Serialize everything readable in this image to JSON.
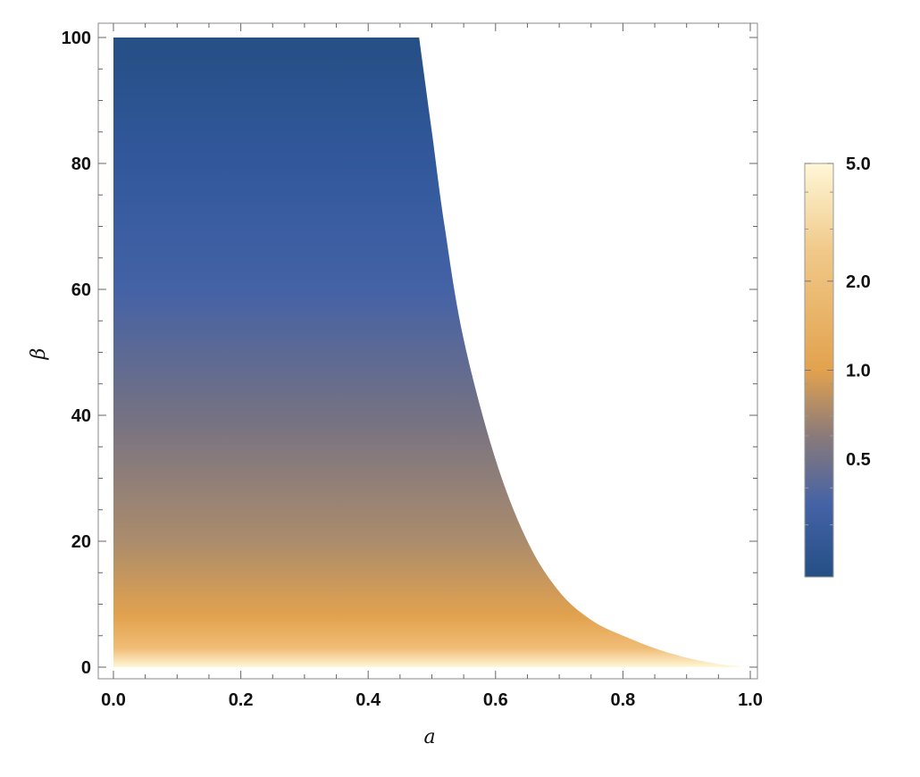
{
  "chart_data": {
    "type": "heatmap",
    "title": "",
    "xlabel": "a",
    "ylabel": "β",
    "xlim": [
      0,
      1.0
    ],
    "ylim": [
      0,
      100
    ],
    "x_ticks": [
      {
        "value": 0.0,
        "label": "0.0"
      },
      {
        "value": 0.2,
        "label": "0.2"
      },
      {
        "value": 0.4,
        "label": "0.4"
      },
      {
        "value": 0.6,
        "label": "0.6"
      },
      {
        "value": 0.8,
        "label": "0.8"
      },
      {
        "value": 1.0,
        "label": "1.0"
      }
    ],
    "y_ticks": [
      {
        "value": 0,
        "label": "0"
      },
      {
        "value": 20,
        "label": "20"
      },
      {
        "value": 40,
        "label": "40"
      },
      {
        "value": 60,
        "label": "60"
      },
      {
        "value": 80,
        "label": "80"
      },
      {
        "value": 100,
        "label": "100"
      }
    ],
    "region_boundary": {
      "description_points": [
        {
          "a": 0.48,
          "beta": 100
        },
        {
          "a": 0.5,
          "beta": 85
        },
        {
          "a": 0.52,
          "beta": 70
        },
        {
          "a": 0.55,
          "beta": 52
        },
        {
          "a": 0.6,
          "beta": 33
        },
        {
          "a": 0.65,
          "beta": 20
        },
        {
          "a": 0.7,
          "beta": 12
        },
        {
          "a": 0.75,
          "beta": 7.5
        },
        {
          "a": 0.8,
          "beta": 5
        },
        {
          "a": 0.85,
          "beta": 3
        },
        {
          "a": 0.9,
          "beta": 1.5
        },
        {
          "a": 0.95,
          "beta": 0.5
        },
        {
          "a": 0.99,
          "beta": 0
        }
      ]
    },
    "color_by_beta": [
      {
        "beta": 100,
        "color": "#254f85"
      },
      {
        "beta": 80,
        "color": "#32589c"
      },
      {
        "beta": 60,
        "color": "#4462a6"
      },
      {
        "beta": 40,
        "color": "#747184"
      },
      {
        "beta": 20,
        "color": "#ab8c6c"
      },
      {
        "beta": 8,
        "color": "#e2a24e"
      },
      {
        "beta": 3,
        "color": "#f0bd76"
      },
      {
        "beta": 0,
        "color": "#fff7d7"
      }
    ],
    "colorbar": {
      "scale": "log",
      "range": [
        0.2,
        5.0
      ],
      "tick_labels": [
        {
          "value": 5.0,
          "label": "5.0"
        },
        {
          "value": 2.0,
          "label": "2.0"
        },
        {
          "value": 1.0,
          "label": "1.0"
        },
        {
          "value": 0.5,
          "label": "0.5"
        }
      ],
      "minor_ticks": [
        0.3,
        0.4,
        0.6,
        0.7,
        0.8,
        0.9,
        3.0,
        4.0
      ],
      "gradient": [
        {
          "value": 0.2,
          "color": "#254f85"
        },
        {
          "value": 0.35,
          "color": "#4462a6"
        },
        {
          "value": 0.6,
          "color": "#8a7a7a"
        },
        {
          "value": 1.0,
          "color": "#e2a24e"
        },
        {
          "value": 2.5,
          "color": "#f0c888"
        },
        {
          "value": 5.0,
          "color": "#fff7d7"
        }
      ]
    },
    "grid": false,
    "legend": "right (colorbar)"
  }
}
